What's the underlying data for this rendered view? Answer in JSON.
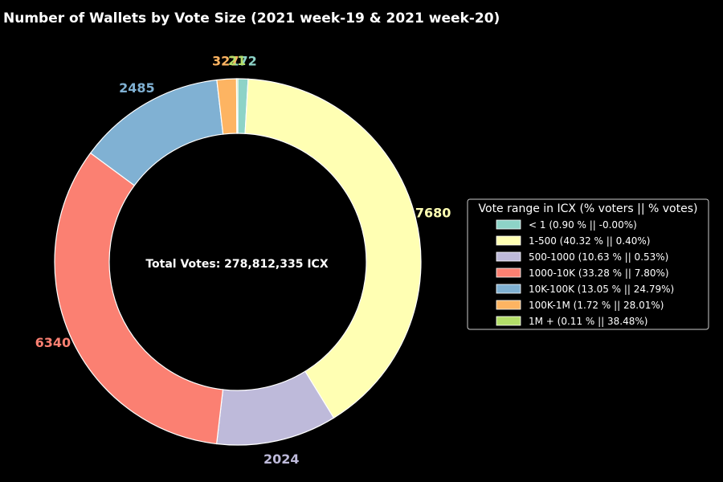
{
  "chart_data": {
    "type": "pie",
    "title": "Number of Wallets by Vote Size (2021 week-19 & 2021 week-20)",
    "center_text": "Total Votes: 278,812,335 ICX",
    "legend_title": "Vote range in ICX (% voters || % votes)",
    "legend_position": "center-right",
    "categories": [
      "< 1",
      "1-500",
      "500-1000",
      "1000-10K",
      "10K-100K",
      "100K-1M",
      "1M +"
    ],
    "values": [
      172,
      7680,
      2024,
      6340,
      2485,
      327,
      21
    ],
    "value_labels": [
      "172",
      "7680",
      "2024",
      "6340",
      "2485",
      "327",
      "21"
    ],
    "legend_entries": [
      "< 1 (0.90 % || -0.00%)",
      "1-500 (40.32 % || 0.40%)",
      "500-1000 (10.63 % || 0.53%)",
      "1000-10K (33.28 % || 7.80%)",
      "10K-100K (13.05 % || 24.79%)",
      "100K-1M (1.72 % || 28.01%)",
      "1M + (0.11 % || 38.48%)"
    ],
    "colors": [
      "#8dd3c7",
      "#ffffb3",
      "#bebada",
      "#fb8072",
      "#80b1d3",
      "#fdb462",
      "#b3de69"
    ],
    "start": "top",
    "direction": "clockwise"
  }
}
